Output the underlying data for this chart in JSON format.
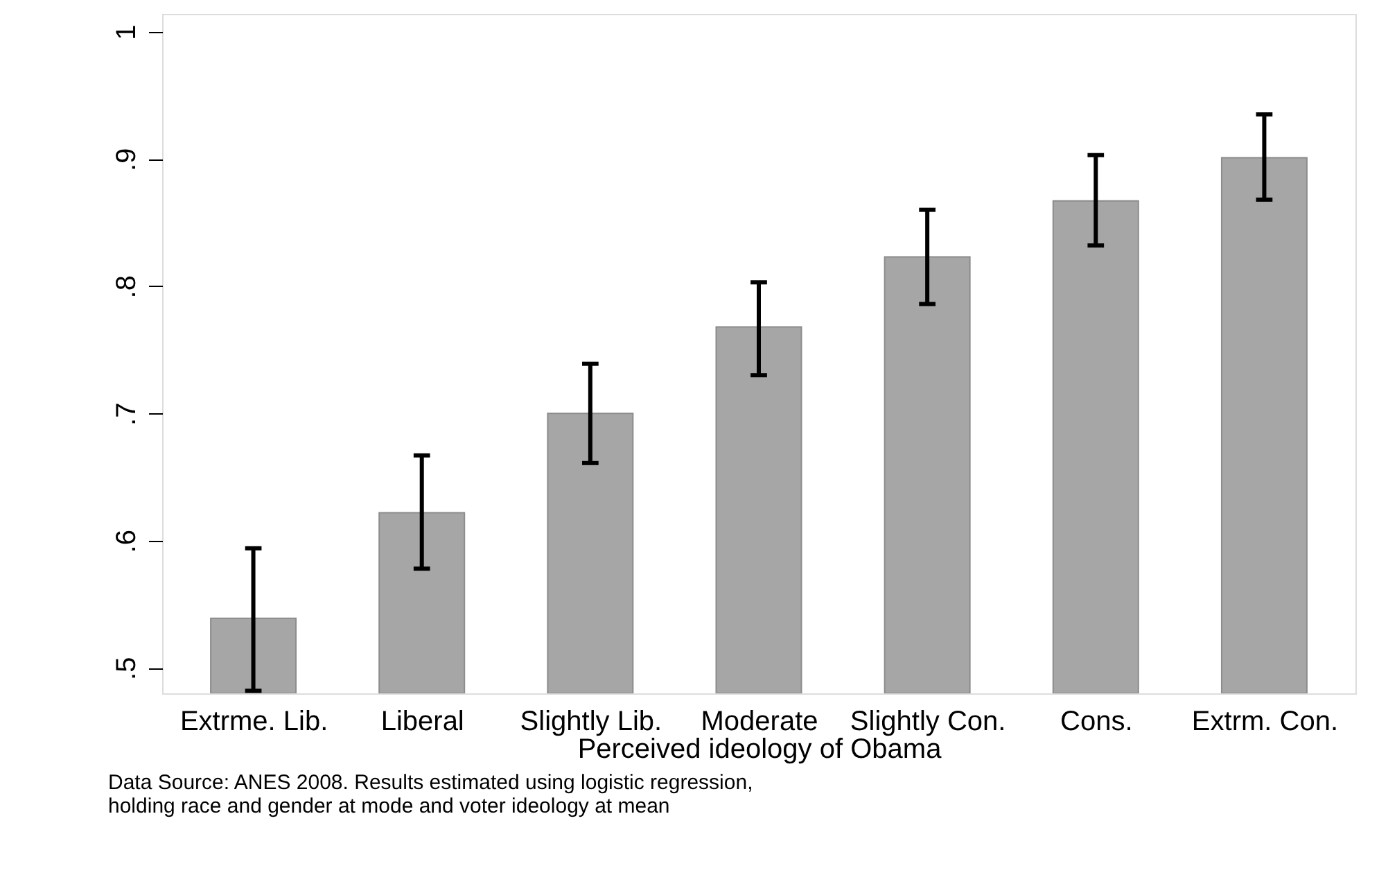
{
  "chart_data": {
    "type": "bar",
    "xlabel": "Perceived ideology of Obama",
    "categories": [
      "Extrme. Lib.",
      "Liberal",
      "Slightly Lib.",
      "Moderate",
      "Slightly Con.",
      "Cons.",
      "Extrm. Con."
    ],
    "values": [
      0.539,
      0.622,
      0.7,
      0.768,
      0.823,
      0.867,
      0.901
    ],
    "errors": [
      [
        0.482,
        0.594
      ],
      [
        0.578,
        0.667
      ],
      [
        0.661,
        0.739
      ],
      [
        0.73,
        0.803
      ],
      [
        0.786,
        0.86
      ],
      [
        0.832,
        0.903
      ],
      [
        0.868,
        0.935
      ]
    ],
    "color": "#a6a6a6",
    "ylim": [
      0.48,
      1.014
    ],
    "yticks": [
      {
        "value": 0.5,
        "label": ".5"
      },
      {
        "value": 0.6,
        "label": ".6"
      },
      {
        "value": 0.7,
        "label": ".7"
      },
      {
        "value": 0.8,
        "label": ".8"
      },
      {
        "value": 0.9,
        "label": ".9"
      },
      1
    ],
    "grid": false,
    "annotations": [
      "Data Source: ANES 2008. Results estimated using logistic regression,\nholding race and gender at mode and voter ideology at mean"
    ]
  }
}
